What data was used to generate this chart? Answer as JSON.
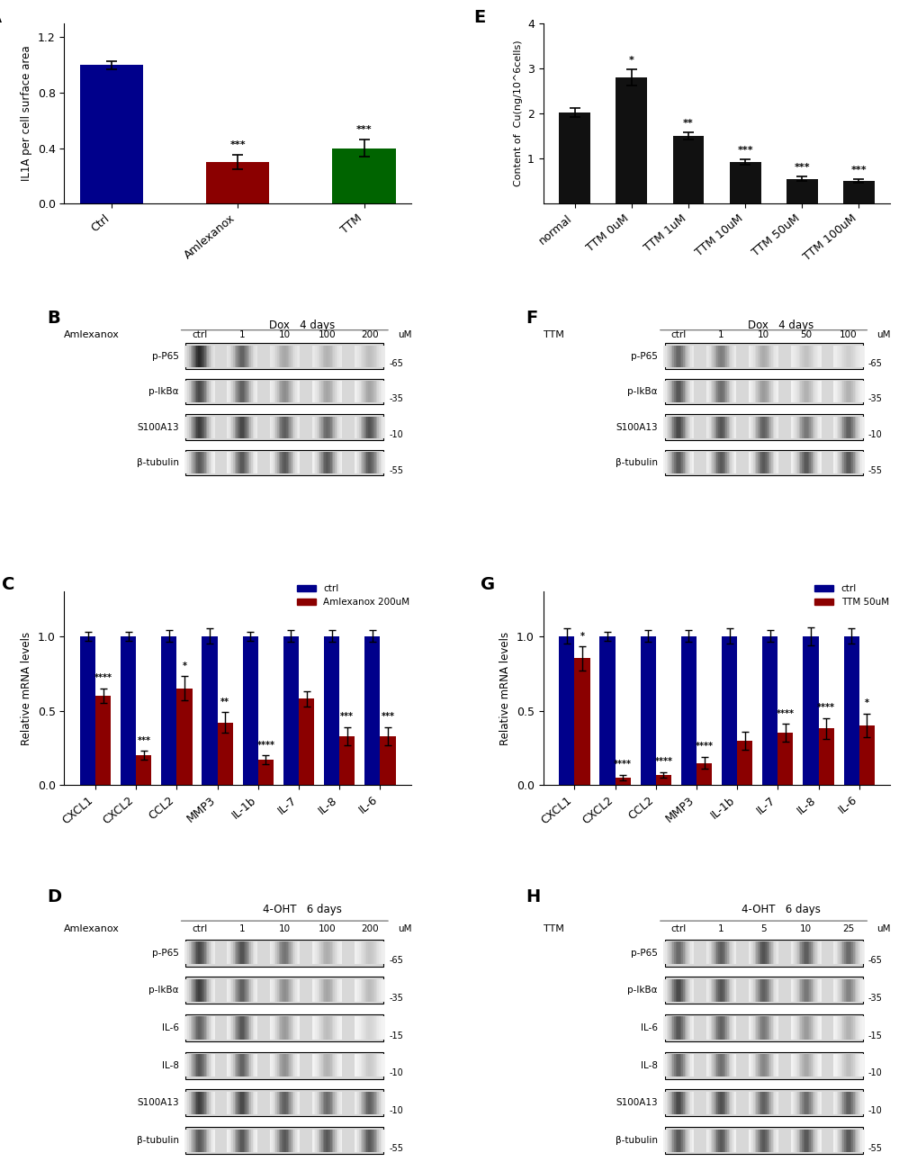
{
  "panel_A": {
    "categories": [
      "Ctrl",
      "Amlexanox",
      "TTM"
    ],
    "values": [
      1.0,
      0.3,
      0.4
    ],
    "errors": [
      0.03,
      0.05,
      0.06
    ],
    "colors": [
      "#00008B",
      "#8B0000",
      "#006400"
    ],
    "ylabel": "IL1A per cell surface area",
    "ylim": [
      0,
      1.3
    ],
    "yticks": [
      0.0,
      0.4,
      0.8,
      1.2
    ],
    "significance": [
      "",
      "***",
      "***"
    ],
    "label": "A"
  },
  "panel_E": {
    "categories": [
      "normal",
      "TTM 0uM",
      "TTM 1uM",
      "TTM 10uM",
      "TTM 50uM",
      "TTM 100uM"
    ],
    "values": [
      2.02,
      2.8,
      1.5,
      0.92,
      0.55,
      0.5
    ],
    "errors": [
      0.1,
      0.18,
      0.08,
      0.06,
      0.05,
      0.04
    ],
    "color": "#111111",
    "ylabel": "Content of  Cu(ng/10^6cells)",
    "ylim": [
      0,
      4
    ],
    "yticks": [
      1,
      2,
      3,
      4
    ],
    "significance": [
      "",
      "*",
      "**",
      "***",
      "***",
      "***"
    ],
    "label": "E"
  },
  "panel_C": {
    "categories": [
      "CXCL1",
      "CXCL2",
      "CCL2",
      "MMP3",
      "IL-1b",
      "IL-7",
      "IL-8",
      "IL-6"
    ],
    "ctrl_values": [
      1.0,
      1.0,
      1.0,
      1.0,
      1.0,
      1.0,
      1.0,
      1.0
    ],
    "treat_values": [
      0.6,
      0.2,
      0.65,
      0.42,
      0.17,
      0.58,
      0.33,
      0.33
    ],
    "ctrl_errors": [
      0.03,
      0.03,
      0.04,
      0.05,
      0.03,
      0.04,
      0.04,
      0.04
    ],
    "treat_errors": [
      0.05,
      0.03,
      0.08,
      0.07,
      0.03,
      0.05,
      0.06,
      0.06
    ],
    "ctrl_color": "#00008B",
    "treat_color": "#8B0000",
    "ylabel": "Relative mRNA levels",
    "ylim": [
      0,
      1.3
    ],
    "yticks": [
      0.0,
      0.5,
      1.0
    ],
    "significance": [
      "****",
      "***",
      "*",
      "**",
      "****",
      "",
      "***",
      "***"
    ],
    "sig_on_treat": [
      true,
      true,
      true,
      true,
      true,
      false,
      true,
      true
    ],
    "legend_ctrl": "ctrl",
    "legend_treat": "Amlexanox 200uM",
    "label": "C"
  },
  "panel_G": {
    "categories": [
      "CXCL1",
      "CXCL2",
      "CCL2",
      "MMP3",
      "IL-1b",
      "IL-7",
      "IL-8",
      "IL-6"
    ],
    "ctrl_values": [
      1.0,
      1.0,
      1.0,
      1.0,
      1.0,
      1.0,
      1.0,
      1.0
    ],
    "treat_values": [
      0.85,
      0.05,
      0.07,
      0.15,
      0.3,
      0.35,
      0.38,
      0.4
    ],
    "ctrl_errors": [
      0.05,
      0.03,
      0.04,
      0.04,
      0.05,
      0.04,
      0.06,
      0.05
    ],
    "treat_errors": [
      0.08,
      0.02,
      0.02,
      0.04,
      0.06,
      0.06,
      0.07,
      0.08
    ],
    "ctrl_color": "#00008B",
    "treat_color": "#8B0000",
    "ylabel": "Relative mRNA levels",
    "ylim": [
      0,
      1.3
    ],
    "yticks": [
      0.0,
      0.5,
      1.0
    ],
    "significance": [
      "*",
      "****",
      "****",
      "****",
      "",
      "****",
      "****",
      "*"
    ],
    "sig_on_treat": [
      true,
      true,
      true,
      true,
      false,
      true,
      true,
      true
    ],
    "legend_ctrl": "ctrl",
    "legend_treat": "TTM 50uM",
    "label": "G"
  },
  "panel_B": {
    "label": "B",
    "title": "Dox   4 days",
    "left_label": "Amlexanox",
    "concentrations": [
      "ctrl",
      "1",
      "10",
      "100",
      "200",
      "uM"
    ],
    "bands": [
      "p-P65",
      "p-IkBα",
      "S100A13",
      "β-tubulin"
    ],
    "kda": [
      "-65",
      "-35",
      "-10",
      "-55"
    ],
    "band_intensities": [
      [
        0.85,
        0.6,
        0.3,
        0.25,
        0.2
      ],
      [
        0.75,
        0.65,
        0.45,
        0.35,
        0.35
      ],
      [
        0.8,
        0.75,
        0.65,
        0.6,
        0.7
      ],
      [
        0.7,
        0.7,
        0.7,
        0.7,
        0.7
      ]
    ],
    "bg_levels": [
      0.15,
      0.08,
      0.1,
      0.05
    ]
  },
  "panel_F": {
    "label": "F",
    "title": "Dox   4 days",
    "left_label": "TTM",
    "concentrations": [
      "ctrl",
      "1",
      "10",
      "50",
      "100",
      "uM"
    ],
    "bands": [
      "p-P65",
      "p-IkBα",
      "S100A13",
      "β-tubulin"
    ],
    "kda": [
      "-65",
      "-35",
      "-10",
      "-55"
    ],
    "band_intensities": [
      [
        0.6,
        0.5,
        0.3,
        0.2,
        0.15
      ],
      [
        0.7,
        0.6,
        0.4,
        0.3,
        0.3
      ],
      [
        0.75,
        0.7,
        0.65,
        0.55,
        0.65
      ],
      [
        0.7,
        0.7,
        0.7,
        0.7,
        0.7
      ]
    ],
    "bg_levels": [
      0.12,
      0.07,
      0.08,
      0.05
    ]
  },
  "panel_D": {
    "label": "D",
    "title": "4-OHT   6 days",
    "left_label": "Amlexanox",
    "concentrations": [
      "ctrl",
      "1",
      "10",
      "100",
      "200",
      "uM"
    ],
    "bands": [
      "p-P65",
      "p-IkBα",
      "IL-6",
      "IL-8",
      "S100A13",
      "β-tubulin"
    ],
    "kda": [
      "-65",
      "-35",
      "-15",
      "-10",
      "-10",
      "-55"
    ],
    "band_intensities": [
      [
        0.75,
        0.7,
        0.55,
        0.3,
        0.2
      ],
      [
        0.8,
        0.65,
        0.45,
        0.35,
        0.25
      ],
      [
        0.65,
        0.7,
        0.4,
        0.25,
        0.15
      ],
      [
        0.7,
        0.65,
        0.45,
        0.3,
        0.2
      ],
      [
        0.8,
        0.75,
        0.65,
        0.6,
        0.65
      ],
      [
        0.7,
        0.7,
        0.7,
        0.7,
        0.7
      ]
    ],
    "bg_levels": [
      0.1,
      0.08,
      0.07,
      0.06,
      0.08,
      0.05
    ]
  },
  "panel_H": {
    "label": "H",
    "title": "4-OHT   6 days",
    "left_label": "TTM",
    "concentrations": [
      "ctrl",
      "1",
      "5",
      "10",
      "25",
      "uM"
    ],
    "bands": [
      "p-P65",
      "p-IkBα",
      "IL-6",
      "IL-8",
      "S100A13",
      "β-tubulin"
    ],
    "kda": [
      "-65",
      "-35",
      "-15",
      "-10",
      "-10",
      "-55"
    ],
    "band_intensities": [
      [
        0.6,
        0.65,
        0.7,
        0.65,
        0.6
      ],
      [
        0.75,
        0.7,
        0.65,
        0.55,
        0.5
      ],
      [
        0.7,
        0.65,
        0.55,
        0.4,
        0.3
      ],
      [
        0.65,
        0.6,
        0.5,
        0.35,
        0.25
      ],
      [
        0.75,
        0.72,
        0.65,
        0.6,
        0.65
      ],
      [
        0.7,
        0.7,
        0.7,
        0.7,
        0.7
      ]
    ],
    "bg_levels": [
      0.1,
      0.08,
      0.07,
      0.06,
      0.08,
      0.05
    ]
  },
  "background_color": "#ffffff",
  "text_color": "#000000"
}
